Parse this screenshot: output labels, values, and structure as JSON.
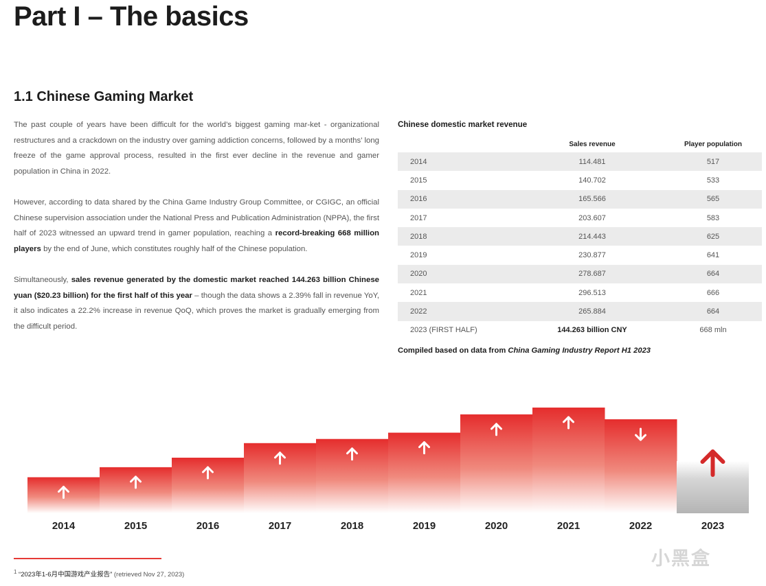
{
  "page": {
    "part_title": "Part I – The basics",
    "section_title": "1.1 Chinese Gaming Market"
  },
  "body": {
    "p1": "The past couple of years have been difficult for the world’s biggest gaming mar-ket - organizational restructures and a crackdown on the industry over gaming addiction concerns, followed by a months’ long freeze of the game approval process, resulted in the first ever decline in the revenue and gamer population in China in 2022.",
    "p2_a": "However, according to data shared by the China Game Industry Group Committee, or CGIGC, an official Chinese supervision association under the National Press and Publication Administration (NPPA), the first half of 2023 witnessed an upward trend in gamer population, reaching a ",
    "p2_bold": "record-breaking 668 million players",
    "p2_b": " by the end of June, which constitutes roughly half of the Chinese population.",
    "p3_a": "Simultaneously, ",
    "p3_bold": "sales revenue generated by the domestic market reached 144.263 billion Chinese yuan ($20.23 billion) for the first half of this year",
    "p3_b": " – though the data shows a 2.39% fall in revenue YoY, it also indicates a 22.2% increase in revenue QoQ, which proves the market is gradually emerging from the difficult period."
  },
  "table": {
    "title": "Chinese domestic market revenue",
    "headers": [
      "",
      "Sales revenue",
      "Player population"
    ],
    "rows": [
      {
        "year": "2014",
        "revenue": "114.481",
        "players": "517"
      },
      {
        "year": "2015",
        "revenue": "140.702",
        "players": "533"
      },
      {
        "year": "2016",
        "revenue": "165.566",
        "players": "565"
      },
      {
        "year": "2017",
        "revenue": "203.607",
        "players": "583"
      },
      {
        "year": "2018",
        "revenue": "214.443",
        "players": "625"
      },
      {
        "year": "2019",
        "revenue": "230.877",
        "players": "641"
      },
      {
        "year": "2020",
        "revenue": "278.687",
        "players": "664"
      },
      {
        "year": "2021",
        "revenue": "296.513",
        "players": "666"
      },
      {
        "year": "2022",
        "revenue": "265.884",
        "players": "664"
      },
      {
        "year": "2023 (FIRST HALF)",
        "revenue": "144.263 billion CNY",
        "players": "668 mln"
      }
    ],
    "compiled_prefix": "Compiled based on data from ",
    "compiled_source": "China Gaming Industry Report H1 2023"
  },
  "chart_data": {
    "type": "bar",
    "categories": [
      "2014",
      "2015",
      "2016",
      "2017",
      "2018",
      "2019",
      "2020",
      "2021",
      "2022",
      "2023"
    ],
    "values": [
      114.481,
      140.702,
      165.566,
      203.607,
      214.443,
      230.877,
      278.687,
      296.513,
      265.884,
      144.263
    ],
    "directions": [
      "up",
      "up",
      "up",
      "up",
      "up",
      "up",
      "up",
      "up",
      "down",
      "up"
    ],
    "title": "",
    "xlabel": "",
    "ylabel": "",
    "ylim": [
      0,
      300
    ],
    "colors": {
      "bar": "#e52d2d",
      "bar_2023": "#b8b8b8",
      "arrow": "#ffffff",
      "arrow_2023": "#d42a2a"
    }
  },
  "footnote": {
    "marker": "1",
    "title": "“2023年1-6月中国游戏产业报告”",
    "retrieved": " (retrieved Nov 27, 2023)"
  },
  "watermark": {
    "text": "小黑盒"
  }
}
